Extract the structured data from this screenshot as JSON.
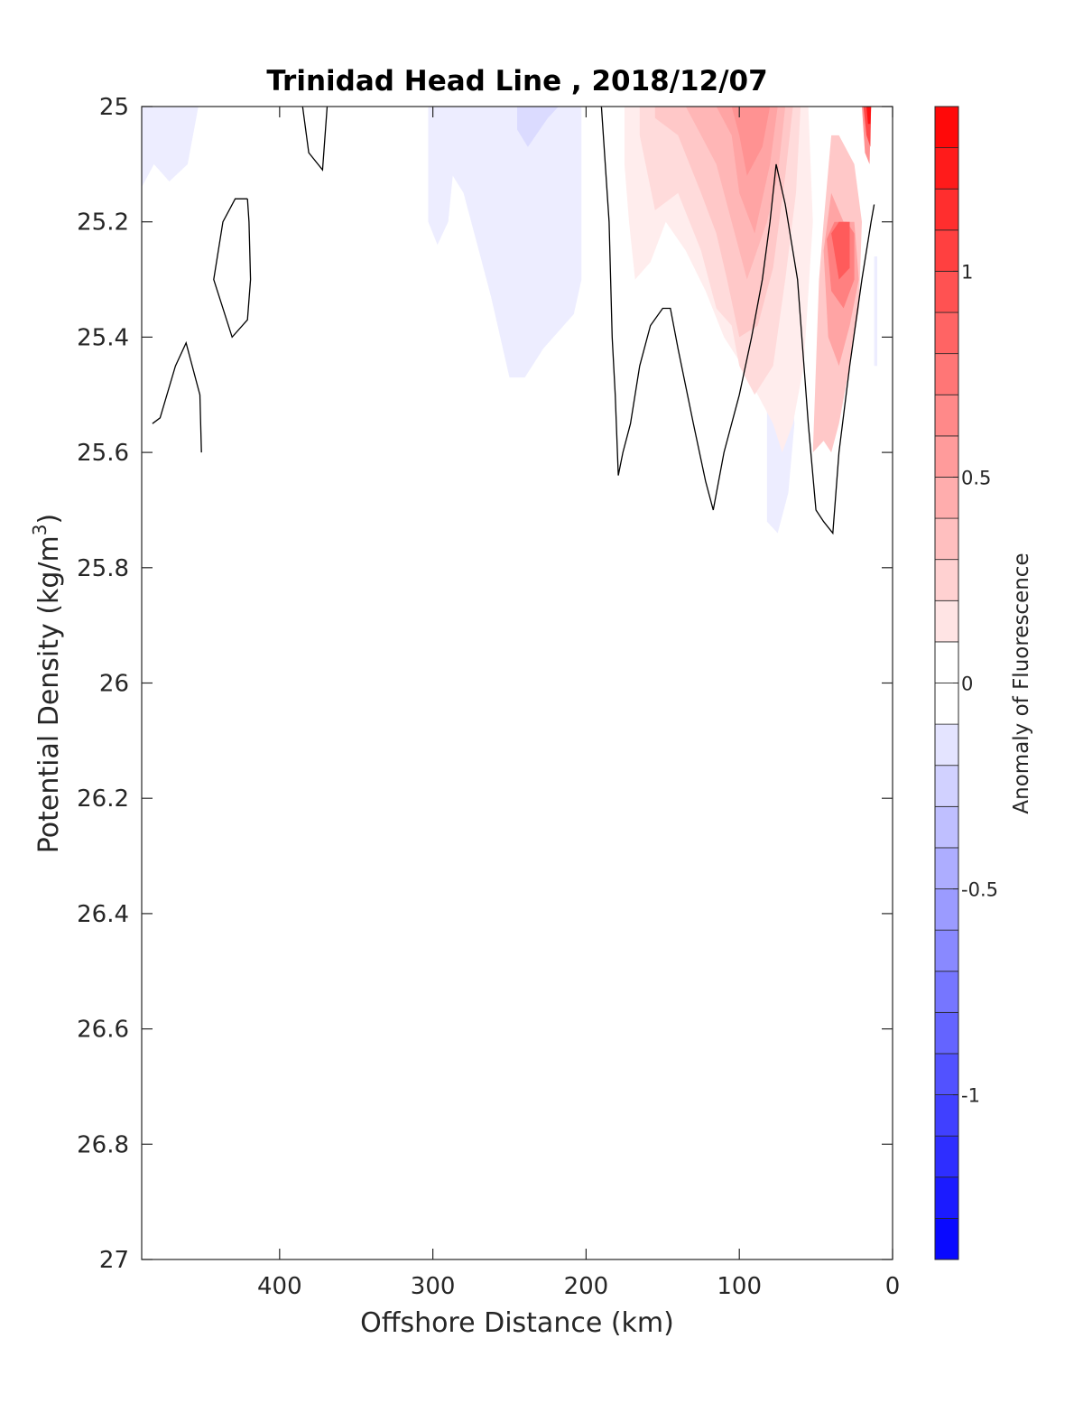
{
  "chart_data": {
    "type": "contour",
    "title": "Trinidad Head Line , 2018/12/07",
    "xlabel": "Offshore Distance (km)",
    "ylabel_main": "Potential Density (kg/m",
    "ylabel_sup": "3",
    "ylabel_close": ")",
    "colorbar_label": "Anomaly of Fluorescence",
    "xlim": [
      490,
      0
    ],
    "ylim": [
      25,
      27
    ],
    "y_reversed": true,
    "x_ticks": [
      "400",
      "300",
      "200",
      "100",
      "0"
    ],
    "x_tick_values": [
      400,
      300,
      200,
      100,
      0
    ],
    "y_ticks": [
      "25",
      "25.2",
      "25.4",
      "25.6",
      "25.8",
      "26",
      "26.2",
      "26.4",
      "26.6",
      "26.8",
      "27"
    ],
    "y_tick_values": [
      25,
      25.2,
      25.4,
      25.6,
      25.8,
      26,
      26.2,
      26.4,
      26.6,
      26.8,
      27
    ],
    "colorbar": {
      "clim": [
        -1.4,
        1.4
      ],
      "levels": 28,
      "ticks": [
        "1",
        "0.5",
        "0",
        "-0.5",
        "-1"
      ],
      "tick_values": [
        1,
        0.5,
        0,
        -0.5,
        -1
      ],
      "colormap": "blue-white-red",
      "positive_color": "#ff0000",
      "negative_color": "#0000ff"
    },
    "regions": [
      {
        "value": -0.1,
        "points": [
          [
            490,
            25
          ],
          [
            453,
            25
          ],
          [
            460,
            25.1
          ],
          [
            472,
            25.13
          ],
          [
            482,
            25.1
          ],
          [
            490,
            25.14
          ]
        ]
      },
      {
        "value": -0.1,
        "points": [
          [
            303,
            25
          ],
          [
            203,
            25
          ],
          [
            203,
            25.3
          ],
          [
            208,
            25.36
          ],
          [
            228,
            25.42
          ],
          [
            240,
            25.47
          ],
          [
            250,
            25.47
          ],
          [
            262,
            25.33
          ],
          [
            270,
            25.25
          ],
          [
            280,
            25.15
          ],
          [
            287,
            25.12
          ],
          [
            290,
            25.2
          ],
          [
            297,
            25.24
          ],
          [
            303,
            25.2
          ]
        ]
      },
      {
        "value": -0.2,
        "points": [
          [
            245,
            25
          ],
          [
            218,
            25
          ],
          [
            225,
            25.02
          ],
          [
            238,
            25.07
          ],
          [
            245,
            25.04
          ]
        ]
      },
      {
        "value": -0.1,
        "points": [
          [
            82,
            25.5
          ],
          [
            72,
            25.3
          ],
          [
            64,
            25.55
          ],
          [
            68,
            25.67
          ],
          [
            75,
            25.74
          ],
          [
            82,
            25.72
          ]
        ]
      },
      {
        "value": -0.1,
        "points": [
          [
            12,
            25.26
          ],
          [
            10,
            25.26
          ],
          [
            10,
            25.45
          ],
          [
            12,
            25.45
          ]
        ]
      },
      {
        "value": 0.1,
        "points": [
          [
            175,
            25
          ],
          [
            55,
            25
          ],
          [
            52,
            25.2
          ],
          [
            58,
            25.45
          ],
          [
            65,
            25.55
          ],
          [
            72,
            25.6
          ],
          [
            78,
            25.55
          ],
          [
            88,
            25.5
          ],
          [
            98,
            25.45
          ],
          [
            110,
            25.4
          ],
          [
            122,
            25.32
          ],
          [
            135,
            25.25
          ],
          [
            148,
            25.2
          ],
          [
            158,
            25.27
          ],
          [
            168,
            25.3
          ],
          [
            172,
            25.2
          ],
          [
            175,
            25.1
          ]
        ]
      },
      {
        "value": 0.2,
        "points": [
          [
            165,
            25
          ],
          [
            60,
            25
          ],
          [
            63,
            25.15
          ],
          [
            70,
            25.3
          ],
          [
            78,
            25.45
          ],
          [
            90,
            25.5
          ],
          [
            100,
            25.45
          ],
          [
            105,
            25.38
          ],
          [
            115,
            25.35
          ],
          [
            125,
            25.25
          ],
          [
            140,
            25.15
          ],
          [
            155,
            25.18
          ],
          [
            165,
            25.05
          ]
        ]
      },
      {
        "value": 0.3,
        "points": [
          [
            155,
            25
          ],
          [
            65,
            25
          ],
          [
            70,
            25.12
          ],
          [
            78,
            25.28
          ],
          [
            88,
            25.38
          ],
          [
            100,
            25.4
          ],
          [
            108,
            25.3
          ],
          [
            115,
            25.22
          ],
          [
            125,
            25.15
          ],
          [
            140,
            25.05
          ],
          [
            155,
            25.02
          ]
        ]
      },
      {
        "value": 0.4,
        "points": [
          [
            135,
            25
          ],
          [
            70,
            25
          ],
          [
            75,
            25.12
          ],
          [
            82,
            25.2
          ],
          [
            95,
            25.3
          ],
          [
            105,
            25.2
          ],
          [
            115,
            25.1
          ],
          [
            125,
            25.05
          ]
        ]
      },
      {
        "value": 0.5,
        "points": [
          [
            115,
            25
          ],
          [
            75,
            25
          ],
          [
            80,
            25.1
          ],
          [
            90,
            25.22
          ],
          [
            100,
            25.15
          ],
          [
            105,
            25.05
          ]
        ]
      },
      {
        "value": 0.6,
        "points": [
          [
            105,
            25
          ],
          [
            80,
            25
          ],
          [
            85,
            25.07
          ],
          [
            95,
            25.12
          ],
          [
            100,
            25.05
          ]
        ]
      },
      {
        "value": 0.3,
        "points": [
          [
            52,
            25.6
          ],
          [
            48,
            25.3
          ],
          [
            45,
            25.2
          ],
          [
            40,
            25.05
          ],
          [
            35,
            25.05
          ],
          [
            25,
            25.1
          ],
          [
            20,
            25.2
          ],
          [
            22,
            25.35
          ],
          [
            28,
            25.45
          ],
          [
            35,
            25.55
          ],
          [
            40,
            25.6
          ],
          [
            45,
            25.58
          ]
        ]
      },
      {
        "value": 0.5,
        "points": [
          [
            45,
            25.25
          ],
          [
            40,
            25.15
          ],
          [
            32,
            25.2
          ],
          [
            25,
            25.2
          ],
          [
            22,
            25.3
          ],
          [
            28,
            25.38
          ],
          [
            35,
            25.45
          ],
          [
            42,
            25.4
          ]
        ]
      },
      {
        "value": 0.7,
        "points": [
          [
            43,
            25.23
          ],
          [
            38,
            25.2
          ],
          [
            30,
            25.2
          ],
          [
            25,
            25.22
          ],
          [
            25,
            25.3
          ],
          [
            32,
            25.35
          ],
          [
            40,
            25.32
          ]
        ]
      },
      {
        "value": 0.9,
        "points": [
          [
            40,
            25.22
          ],
          [
            35,
            25.2
          ],
          [
            28,
            25.2
          ],
          [
            28,
            25.28
          ],
          [
            35,
            25.3
          ]
        ]
      },
      {
        "value": 0.6,
        "points": [
          [
            20,
            25
          ],
          [
            14,
            25
          ],
          [
            15,
            25.1
          ],
          [
            18,
            25.08
          ]
        ]
      },
      {
        "value": 1.0,
        "points": [
          [
            19,
            25
          ],
          [
            14,
            25
          ],
          [
            14.5,
            25.07
          ],
          [
            17,
            25.05
          ]
        ]
      },
      {
        "value": 1.3,
        "points": [
          [
            17,
            25
          ],
          [
            14,
            25
          ],
          [
            14.5,
            25.03
          ],
          [
            16,
            25.03
          ]
        ]
      }
    ],
    "contours": [
      {
        "level": 0,
        "points": [
          [
            483,
            25.55
          ],
          [
            478,
            25.54
          ],
          [
            468,
            25.45
          ],
          [
            461,
            25.41
          ],
          [
            452,
            25.5
          ],
          [
            451,
            25.6
          ]
        ]
      },
      {
        "level": 0,
        "points": [
          [
            421,
            25.16
          ],
          [
            429,
            25.16
          ],
          [
            437,
            25.2
          ],
          [
            443,
            25.3
          ],
          [
            431,
            25.4
          ],
          [
            421,
            25.37
          ],
          [
            419,
            25.3
          ],
          [
            420,
            25.2
          ],
          [
            421,
            25.16
          ]
        ]
      },
      {
        "level": 0,
        "points": [
          [
            385,
            25
          ],
          [
            381,
            25.08
          ],
          [
            372,
            25.11
          ],
          [
            369,
            25
          ]
        ]
      },
      {
        "level": 0,
        "points": [
          [
            190,
            25
          ],
          [
            185,
            25.2
          ],
          [
            183,
            25.4
          ],
          [
            181,
            25.5
          ],
          [
            179,
            25.64
          ],
          [
            176,
            25.6
          ],
          [
            171,
            25.55
          ],
          [
            165,
            25.45
          ],
          [
            158,
            25.38
          ],
          [
            150,
            25.35
          ],
          [
            145,
            25.35
          ],
          [
            140,
            25.42
          ],
          [
            130,
            25.55
          ],
          [
            122,
            25.65
          ],
          [
            117,
            25.7
          ],
          [
            110,
            25.6
          ],
          [
            100,
            25.5
          ],
          [
            92,
            25.4
          ],
          [
            85,
            25.3
          ],
          [
            80,
            25.2
          ],
          [
            76,
            25.1
          ],
          [
            70,
            25.17
          ],
          [
            62,
            25.3
          ],
          [
            55,
            25.55
          ],
          [
            50,
            25.7
          ],
          [
            45,
            25.72
          ],
          [
            39,
            25.74
          ],
          [
            35,
            25.6
          ],
          [
            28,
            25.45
          ],
          [
            20,
            25.3
          ],
          [
            14,
            25.2
          ],
          [
            12,
            25.17
          ]
        ]
      }
    ]
  }
}
